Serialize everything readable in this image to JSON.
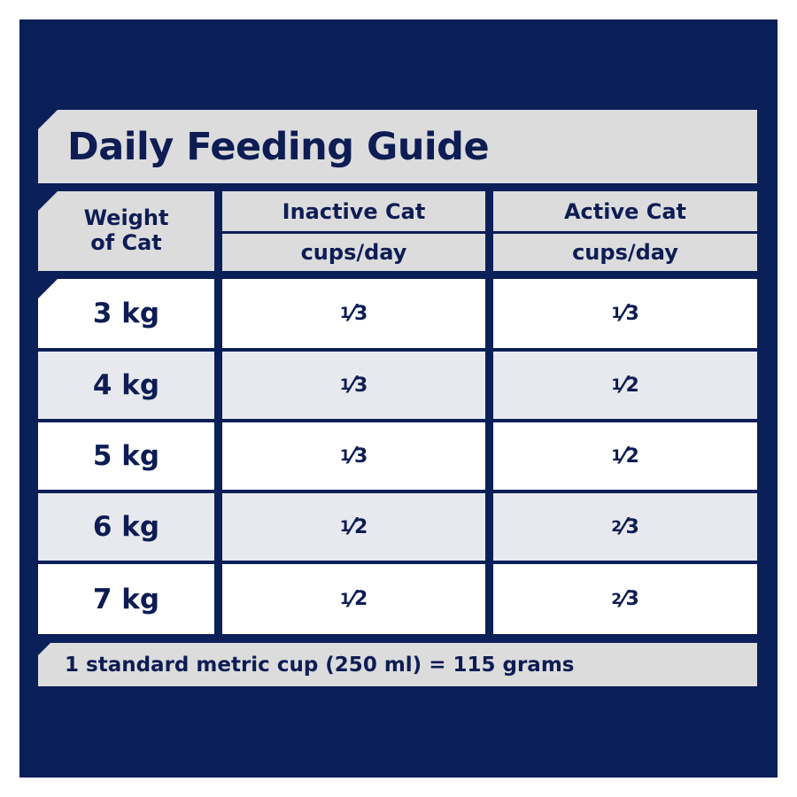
{
  "title": "Daily Feeding Guide",
  "headers": {
    "weight": "Weight of Cat",
    "inactive": "Inactive Cat",
    "active": "Active Cat",
    "unit_inactive": "cups/day",
    "unit_active": "cups/day"
  },
  "rows": [
    {
      "weight": "3 kg",
      "inactive": {
        "num": "1",
        "den": "3"
      },
      "active": {
        "num": "1",
        "den": "3"
      }
    },
    {
      "weight": "4 kg",
      "inactive": {
        "num": "1",
        "den": "3"
      },
      "active": {
        "num": "1",
        "den": "2"
      }
    },
    {
      "weight": "5 kg",
      "inactive": {
        "num": "1",
        "den": "3"
      },
      "active": {
        "num": "1",
        "den": "2"
      }
    },
    {
      "weight": "6 kg",
      "inactive": {
        "num": "1",
        "den": "2"
      },
      "active": {
        "num": "2",
        "den": "3"
      }
    },
    {
      "weight": "7 kg",
      "inactive": {
        "num": "1",
        "den": "2"
      },
      "active": {
        "num": "2",
        "den": "3"
      }
    }
  ],
  "footer": "1 standard metric cup (250 ml) = 115 grams",
  "colors": {
    "navy": "#0b1f58",
    "text": "#0d1d54",
    "gray": "#dcdcdd",
    "row_alt": "#e8e9ee"
  }
}
